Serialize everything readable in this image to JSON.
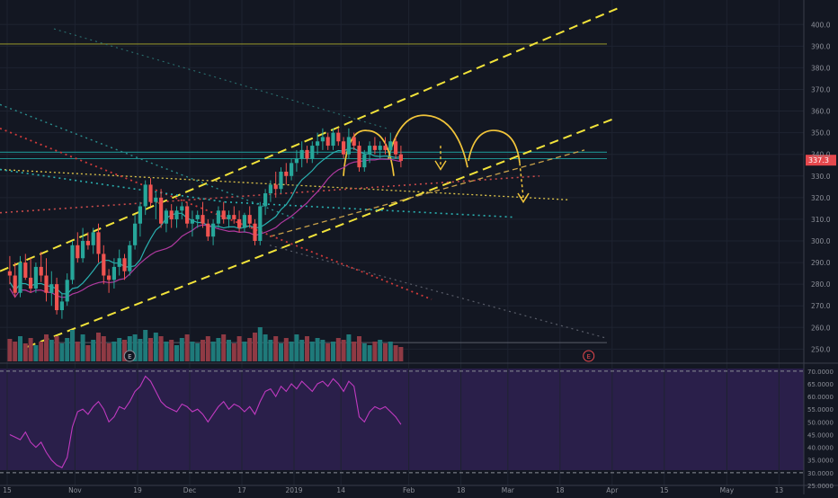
{
  "chart_data": {
    "type": "candlestick",
    "price_axis": {
      "ticks": [
        "400.0",
        "390.0",
        "380.0",
        "370.0",
        "360.0",
        "350.0",
        "340.0",
        "330.0",
        "320.0",
        "310.0",
        "300.0",
        "290.0",
        "280.0",
        "270.0",
        "260.0",
        "250.0"
      ],
      "ylim": [
        246,
        408
      ],
      "last_price_label": "337.3"
    },
    "rsi_axis": {
      "ticks": [
        "70.0000",
        "65.0000",
        "60.0000",
        "55.0000",
        "50.0000",
        "45.0000",
        "40.0000",
        "35.0000",
        "30.0000",
        "25.0000"
      ],
      "ylim": [
        25,
        71
      ],
      "upper": 70,
      "lower": 30
    },
    "time_axis": {
      "labels": [
        "15",
        "Nov",
        "19",
        "Dec",
        "17",
        "2019",
        "14",
        "Feb",
        "18",
        "Mar",
        "18",
        "Apr",
        "15",
        "May",
        "13"
      ],
      "label_bars": [
        0,
        13,
        25,
        35,
        45,
        55,
        64,
        77,
        87,
        96,
        106,
        116,
        126,
        138,
        148
      ]
    },
    "earnings_markers": [
      {
        "label": "E",
        "bar": 23
      },
      {
        "label": "E",
        "bar": 111
      }
    ],
    "candles": [
      [
        286,
        293,
        280,
        284
      ],
      [
        284,
        290,
        274,
        276
      ],
      [
        276,
        293,
        274,
        290
      ],
      [
        290,
        294,
        282,
        283
      ],
      [
        283,
        292,
        276,
        278
      ],
      [
        278,
        290,
        276,
        288
      ],
      [
        288,
        295,
        281,
        284
      ],
      [
        284,
        292,
        272,
        276
      ],
      [
        276,
        286,
        270,
        280
      ],
      [
        280,
        283,
        266,
        268
      ],
      [
        268,
        276,
        264,
        272
      ],
      [
        272,
        285,
        270,
        282
      ],
      [
        282,
        300,
        280,
        298
      ],
      [
        298,
        304,
        290,
        292
      ],
      [
        292,
        306,
        290,
        300
      ],
      [
        300,
        304,
        296,
        298
      ],
      [
        298,
        306,
        294,
        304
      ],
      [
        304,
        308,
        290,
        294
      ],
      [
        294,
        298,
        280,
        284
      ],
      [
        284,
        287,
        276,
        282
      ],
      [
        282,
        292,
        278,
        288
      ],
      [
        288,
        296,
        284,
        292
      ],
      [
        292,
        294,
        282,
        286
      ],
      [
        286,
        300,
        284,
        298
      ],
      [
        298,
        312,
        296,
        308
      ],
      [
        308,
        318,
        302,
        316
      ],
      [
        316,
        328,
        312,
        326
      ],
      [
        326,
        329,
        316,
        318
      ],
      [
        318,
        322,
        310,
        320
      ],
      [
        320,
        324,
        306,
        308
      ],
      [
        308,
        315,
        304,
        314
      ],
      [
        314,
        317,
        306,
        310
      ],
      [
        310,
        316,
        306,
        314
      ],
      [
        314,
        318,
        310,
        316
      ],
      [
        316,
        318,
        306,
        308
      ],
      [
        308,
        314,
        302,
        310
      ],
      [
        310,
        314,
        306,
        312
      ],
      [
        312,
        318,
        306,
        308
      ],
      [
        308,
        310,
        300,
        302
      ],
      [
        302,
        310,
        298,
        308
      ],
      [
        308,
        316,
        306,
        314
      ],
      [
        314,
        318,
        308,
        310
      ],
      [
        310,
        314,
        306,
        312
      ],
      [
        312,
        316,
        308,
        310
      ],
      [
        310,
        314,
        304,
        306
      ],
      [
        306,
        313,
        304,
        312
      ],
      [
        312,
        316,
        306,
        308
      ],
      [
        308,
        310,
        298,
        300
      ],
      [
        300,
        318,
        298,
        316
      ],
      [
        316,
        324,
        312,
        322
      ],
      [
        322,
        328,
        318,
        326
      ],
      [
        326,
        332,
        320,
        324
      ],
      [
        324,
        334,
        322,
        332
      ],
      [
        332,
        336,
        326,
        330
      ],
      [
        330,
        338,
        328,
        336
      ],
      [
        336,
        342,
        332,
        338
      ],
      [
        338,
        346,
        334,
        342
      ],
      [
        342,
        344,
        336,
        338
      ],
      [
        338,
        346,
        336,
        344
      ],
      [
        344,
        350,
        340,
        346
      ],
      [
        346,
        352,
        342,
        348
      ],
      [
        348,
        350,
        342,
        344
      ],
      [
        344,
        352,
        342,
        350
      ],
      [
        350,
        352,
        344,
        346
      ],
      [
        346,
        348,
        338,
        340
      ],
      [
        340,
        352,
        338,
        348
      ],
      [
        348,
        350,
        342,
        344
      ],
      [
        344,
        346,
        332,
        334
      ],
      [
        334,
        342,
        332,
        340
      ],
      [
        340,
        346,
        336,
        344
      ],
      [
        344,
        348,
        340,
        342
      ],
      [
        342,
        346,
        338,
        344
      ],
      [
        344,
        348,
        340,
        342
      ],
      [
        342,
        350,
        340,
        346
      ],
      [
        346,
        348,
        338,
        340
      ],
      [
        340,
        344,
        334,
        337
      ]
    ],
    "volume": [
      25,
      22,
      28,
      20,
      26,
      18,
      22,
      30,
      24,
      28,
      20,
      26,
      35,
      22,
      30,
      18,
      24,
      32,
      28,
      20,
      22,
      26,
      24,
      28,
      30,
      25,
      35,
      26,
      32,
      28,
      22,
      24,
      18,
      26,
      30,
      22,
      20,
      24,
      28,
      22,
      26,
      30,
      24,
      20,
      28,
      22,
      26,
      32,
      38,
      30,
      24,
      28,
      20,
      26,
      22,
      30,
      24,
      28,
      22,
      26,
      24,
      20,
      22,
      26,
      24,
      30,
      22,
      28,
      20,
      18,
      22,
      24,
      20,
      22,
      18,
      16
    ],
    "rsi": [
      45,
      44,
      43,
      46,
      42,
      40,
      42,
      38,
      35,
      33,
      32,
      36,
      48,
      54,
      55,
      53,
      56,
      58,
      55,
      50,
      52,
      56,
      55,
      58,
      62,
      64,
      68,
      66,
      62,
      58,
      56,
      55,
      54,
      57,
      56,
      54,
      55,
      53,
      50,
      53,
      56,
      58,
      55,
      57,
      56,
      54,
      56,
      53,
      58,
      62,
      63,
      60,
      64,
      62,
      65,
      63,
      66,
      64,
      62,
      65,
      66,
      64,
      67,
      65,
      62,
      66,
      64,
      52,
      50,
      54,
      56,
      55,
      56,
      54,
      52,
      49
    ]
  }
}
